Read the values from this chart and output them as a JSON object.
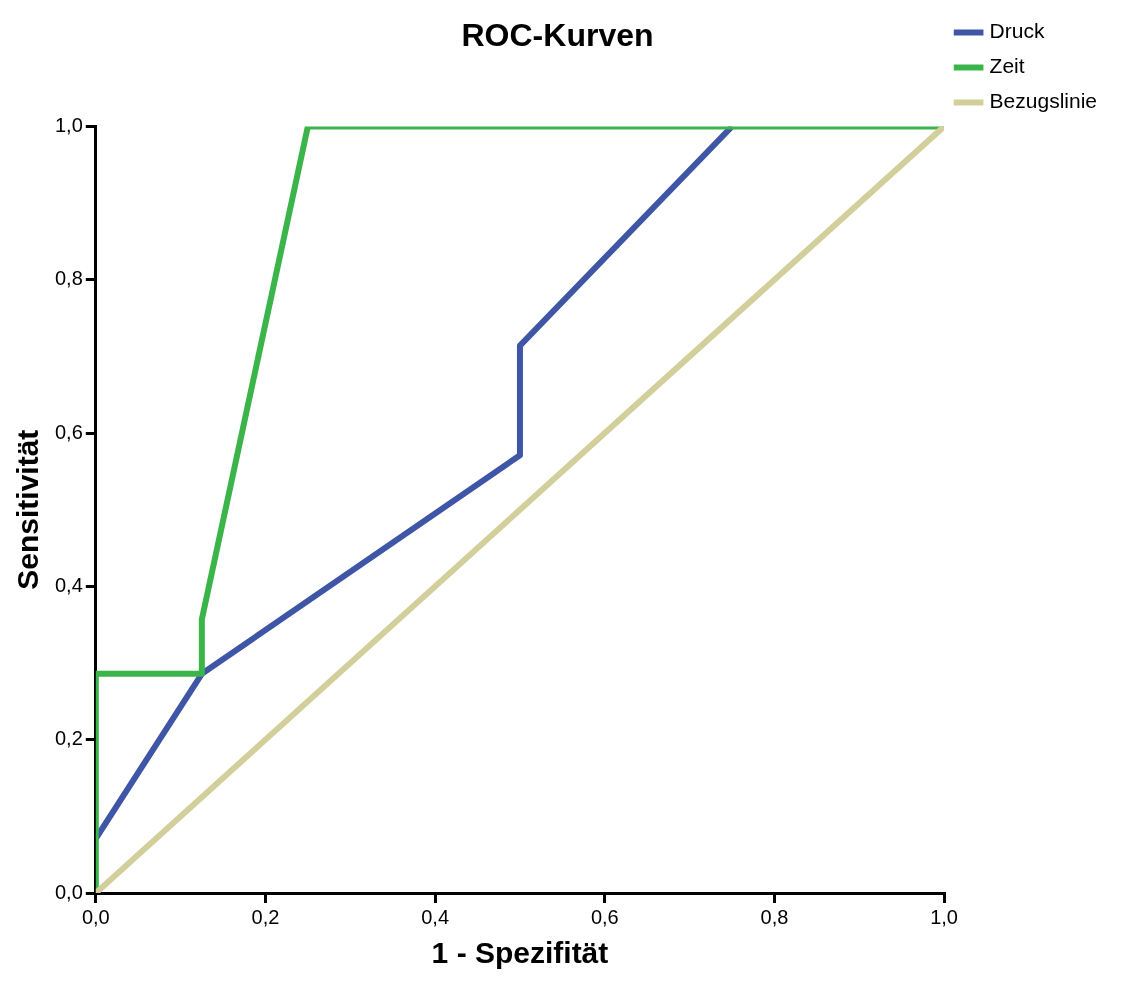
{
  "chart_data": {
    "type": "line",
    "title": "ROC-Kurven",
    "xlabel": "1 - Spezifität",
    "ylabel": "Sensitivität",
    "xlim": [
      0,
      1
    ],
    "ylim": [
      0,
      1
    ],
    "xticks": [
      {
        "value": 0,
        "label": "0,0"
      },
      {
        "value": 0.2,
        "label": "0,2"
      },
      {
        "value": 0.4,
        "label": "0,4"
      },
      {
        "value": 0.6,
        "label": "0,6"
      },
      {
        "value": 0.8,
        "label": "0,8"
      },
      {
        "value": 1,
        "label": "1,0"
      }
    ],
    "yticks": [
      {
        "value": 0,
        "label": "0,0"
      },
      {
        "value": 0.2,
        "label": "0,2"
      },
      {
        "value": 0.4,
        "label": "0,4"
      },
      {
        "value": 0.6,
        "label": "0,6"
      },
      {
        "value": 0.8,
        "label": "0,8"
      },
      {
        "value": 1,
        "label": "1,0"
      }
    ],
    "grid": false,
    "legend": "right",
    "marker": "none",
    "line_style": "solid",
    "series": [
      {
        "name": "Druck",
        "color": "#3f55a5",
        "x": [
          0,
          0.125,
          0.5,
          0.5,
          0.75
        ],
        "values": [
          0.071,
          0.286,
          0.571,
          0.714,
          1
        ]
      },
      {
        "name": "Zeit",
        "color": "#3bb54a",
        "x": [
          0,
          0,
          0.125,
          0.125,
          0.25,
          1
        ],
        "values": [
          0,
          0.286,
          0.286,
          0.357,
          1,
          1
        ]
      },
      {
        "name": "Bezugslinie",
        "color": "#d3cf9b",
        "x": [
          0,
          1
        ],
        "values": [
          0,
          1
        ]
      }
    ]
  }
}
